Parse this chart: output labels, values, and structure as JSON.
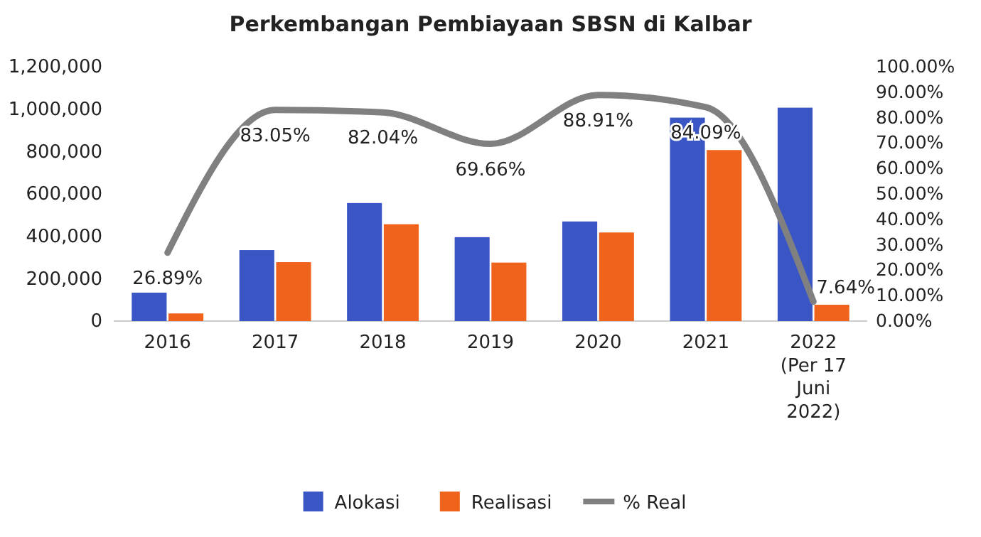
{
  "chart_data": {
    "type": "bar",
    "title": "Perkembangan Pembiayaan SBSN di Kalbar",
    "categories": [
      "2016",
      "2017",
      "2018",
      "2019",
      "2020",
      "2021",
      "2022\n(Per 17\nJuni\n2022)"
    ],
    "series": [
      {
        "name": "Alokasi",
        "color": "#3a56c5",
        "values": [
          134000,
          335000,
          557000,
          396000,
          470000,
          960000,
          1007000
        ]
      },
      {
        "name": "Realisasi",
        "color": "#f0631c",
        "values": [
          36000,
          278000,
          457000,
          276000,
          418000,
          807000,
          77000
        ]
      },
      {
        "name": "% Real",
        "type": "line",
        "axis": "y2",
        "color": "#808080",
        "values": [
          26.89,
          83.05,
          82.04,
          69.66,
          88.91,
          84.09,
          7.64
        ],
        "value_labels": [
          "26.89%",
          "83.05%",
          "82.04%",
          "69.66%",
          "88.91%",
          "84.09%",
          "7.64%"
        ]
      }
    ],
    "ylim": [
      0,
      1200000
    ],
    "yticks": [
      {
        "value": 0,
        "label": "0"
      },
      {
        "value": 200000,
        "label": "200,000"
      },
      {
        "value": 400000,
        "label": "400,000"
      },
      {
        "value": 600000,
        "label": "600,000"
      },
      {
        "value": 800000,
        "label": "800,000"
      },
      {
        "value": 1000000,
        "label": "1,000,000"
      },
      {
        "value": 1200000,
        "label": "1,200,000"
      }
    ],
    "y2lim": [
      0,
      100
    ],
    "y2ticks": [
      {
        "value": 0,
        "label": "0.00%"
      },
      {
        "value": 10,
        "label": "10.00%"
      },
      {
        "value": 20,
        "label": "20.00%"
      },
      {
        "value": 30,
        "label": "30.00%"
      },
      {
        "value": 40,
        "label": "40.00%"
      },
      {
        "value": 50,
        "label": "50.00%"
      },
      {
        "value": 60,
        "label": "60.00%"
      },
      {
        "value": 70,
        "label": "70.00%"
      },
      {
        "value": 80,
        "label": "80.00%"
      },
      {
        "value": 90,
        "label": "90.00%"
      },
      {
        "value": 100,
        "label": "100.00%"
      }
    ],
    "legend": "bottom",
    "grid": false
  }
}
